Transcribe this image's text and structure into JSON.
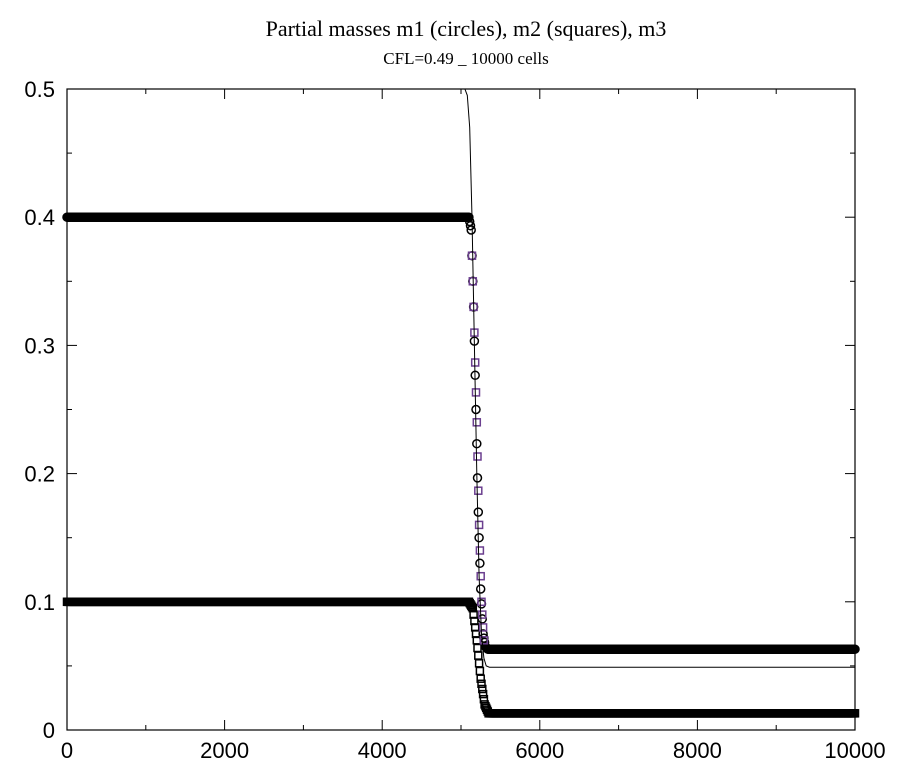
{
  "chart_data": {
    "type": "line",
    "title": "Partial masses m1 (circles), m2 (squares), m3",
    "subtitle": "CFL=0.49 _  10000 cells",
    "xlabel": "",
    "ylabel": "",
    "xlim": [
      0,
      10000
    ],
    "ylim": [
      0,
      0.5
    ],
    "x_ticks": [
      0,
      2000,
      4000,
      6000,
      8000,
      10000
    ],
    "x_tick_labels": [
      "0",
      "2000",
      "4000",
      "6000",
      "8000",
      "10000"
    ],
    "y_ticks": [
      0,
      0.1,
      0.2,
      0.3,
      0.4,
      0.5
    ],
    "y_tick_labels": [
      "0",
      "0.1",
      "0.2",
      "0.3",
      "0.4",
      "0.5"
    ],
    "grid": false,
    "series": [
      {
        "marker": "circles",
        "color": "#000000",
        "x": [
          0,
          5100,
          5130,
          5160,
          5190,
          5220,
          5250,
          5280,
          5310,
          5340,
          10000
        ],
        "y": [
          0.4,
          0.4,
          0.39,
          0.33,
          0.25,
          0.17,
          0.11,
          0.075,
          0.065,
          0.063,
          0.063
        ]
      },
      {
        "marker": "squares",
        "color": "#000000",
        "x": [
          0,
          5100,
          5150,
          5200,
          5250,
          5300,
          5350,
          10000
        ],
        "y": [
          0.1,
          0.1,
          0.095,
          0.07,
          0.04,
          0.02,
          0.013,
          0.013
        ]
      },
      {
        "marker": "squares",
        "color": "#6b3f8f",
        "x": [
          5140,
          5170,
          5200,
          5230,
          5260,
          5290
        ],
        "y": [
          0.37,
          0.31,
          0.24,
          0.16,
          0.1,
          0.07
        ]
      },
      {
        "marker": "none",
        "color": "#000000",
        "x": [
          5050,
          5080,
          5110,
          5140,
          5170,
          5200,
          5230,
          5260,
          5290,
          5320,
          5360,
          10000
        ],
        "y": [
          0.5,
          0.495,
          0.47,
          0.4,
          0.3,
          0.2,
          0.12,
          0.075,
          0.056,
          0.05,
          0.049,
          0.049
        ]
      }
    ]
  }
}
